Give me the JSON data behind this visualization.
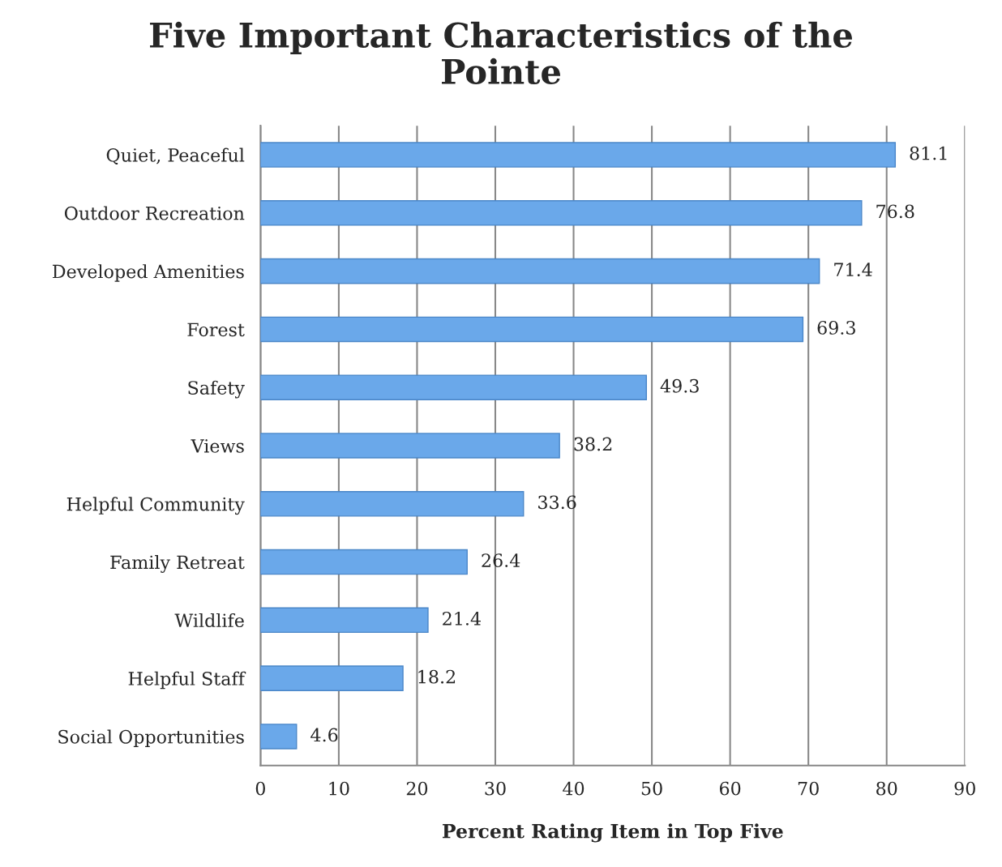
{
  "chart_data": {
    "type": "bar",
    "orientation": "horizontal",
    "title": "Five Important Characteristics of the\nPointe",
    "xlabel": "Percent Rating Item in Top Five",
    "categories": [
      "Quiet, Peaceful",
      "Outdoor Recreation",
      "Developed Amenities",
      "Forest",
      "Safety",
      "Views",
      "Helpful Community",
      "Family Retreat",
      "Wildlife",
      "Helpful Staff",
      "Social Opportunities"
    ],
    "values": [
      81.1,
      76.8,
      71.4,
      69.3,
      49.3,
      38.2,
      33.6,
      26.4,
      21.4,
      18.2,
      4.6
    ],
    "color": "#6aa8ea",
    "data_labels": true,
    "xlim": [
      0,
      90
    ],
    "xticks": [
      0,
      10,
      20,
      30,
      40,
      50,
      60,
      70,
      80,
      90
    ],
    "grid": "x"
  }
}
